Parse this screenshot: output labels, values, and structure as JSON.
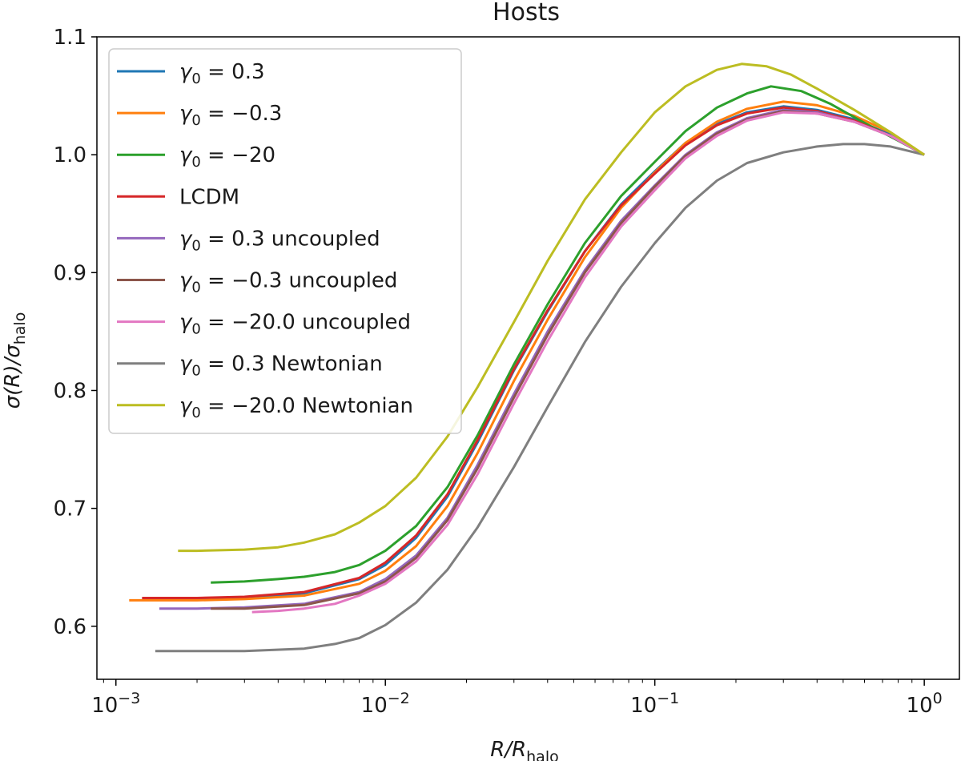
{
  "chart_data": {
    "type": "line",
    "title": "Hosts",
    "xlabel": {
      "base": "R/R",
      "sub": "halo"
    },
    "ylabel": {
      "num": "σ(R)/σ",
      "sub": "halo"
    },
    "xscale": "log",
    "xlim": [
      0.00085,
      1.35
    ],
    "ylim": [
      0.555,
      1.1
    ],
    "x_ticks": [
      {
        "value": 0.001,
        "base": "10",
        "exp": "−3"
      },
      {
        "value": 0.01,
        "base": "10",
        "exp": "−2"
      },
      {
        "value": 0.1,
        "base": "10",
        "exp": "−1"
      },
      {
        "value": 1,
        "base": "10",
        "exp": "0"
      }
    ],
    "y_ticks": [
      {
        "value": 0.6,
        "label": "0.6"
      },
      {
        "value": 0.7,
        "label": "0.7"
      },
      {
        "value": 0.8,
        "label": "0.8"
      },
      {
        "value": 0.9,
        "label": "0.9"
      },
      {
        "value": 1.0,
        "label": "1.0"
      },
      {
        "value": 1.1,
        "label": "1.1"
      }
    ],
    "legend_position": "top-left",
    "series": [
      {
        "name": "γ₀ = 0.3",
        "math": "0.3",
        "suffix": "",
        "color": "#1f77b4",
        "x": [
          0.00125,
          0.002,
          0.003,
          0.005,
          0.008,
          0.01,
          0.013,
          0.017,
          0.022,
          0.03,
          0.04,
          0.055,
          0.075,
          0.1,
          0.13,
          0.17,
          0.22,
          0.3,
          0.4,
          0.55,
          0.75,
          1.0
        ],
        "y": [
          0.623,
          0.623,
          0.624,
          0.628,
          0.64,
          0.652,
          0.675,
          0.71,
          0.756,
          0.817,
          0.867,
          0.918,
          0.958,
          0.986,
          1.01,
          1.026,
          1.036,
          1.041,
          1.038,
          1.03,
          1.017,
          1.0
        ]
      },
      {
        "name": "γ₀ = −0.3",
        "math": "−0.3",
        "suffix": "",
        "color": "#ff7f0e",
        "x": [
          0.00112,
          0.002,
          0.003,
          0.005,
          0.008,
          0.01,
          0.013,
          0.017,
          0.022,
          0.03,
          0.04,
          0.055,
          0.075,
          0.1,
          0.13,
          0.17,
          0.22,
          0.3,
          0.4,
          0.55,
          0.75,
          1.0
        ],
        "y": [
          0.622,
          0.622,
          0.623,
          0.626,
          0.636,
          0.647,
          0.668,
          0.702,
          0.747,
          0.808,
          0.86,
          0.913,
          0.955,
          0.985,
          1.01,
          1.028,
          1.039,
          1.045,
          1.042,
          1.033,
          1.019,
          1.0
        ]
      },
      {
        "name": "γ₀ = −20",
        "math": "−20",
        "suffix": "",
        "color": "#2ca02c",
        "x": [
          0.00225,
          0.003,
          0.004,
          0.005,
          0.0065,
          0.008,
          0.01,
          0.013,
          0.017,
          0.022,
          0.03,
          0.04,
          0.055,
          0.075,
          0.1,
          0.13,
          0.17,
          0.22,
          0.27,
          0.35,
          0.45,
          0.6,
          0.8,
          1.0
        ],
        "y": [
          0.637,
          0.638,
          0.64,
          0.642,
          0.646,
          0.652,
          0.664,
          0.685,
          0.718,
          0.762,
          0.822,
          0.873,
          0.925,
          0.965,
          0.994,
          1.02,
          1.04,
          1.052,
          1.058,
          1.054,
          1.043,
          1.027,
          1.012,
          1.0
        ]
      },
      {
        "name": "LCDM",
        "math": "",
        "suffix": "LCDM",
        "color": "#d62728",
        "x": [
          0.00125,
          0.002,
          0.003,
          0.005,
          0.008,
          0.01,
          0.013,
          0.017,
          0.022,
          0.03,
          0.04,
          0.055,
          0.075,
          0.1,
          0.13,
          0.17,
          0.22,
          0.3,
          0.4,
          0.55,
          0.75,
          1.0
        ],
        "y": [
          0.624,
          0.624,
          0.625,
          0.629,
          0.641,
          0.654,
          0.677,
          0.712,
          0.758,
          0.818,
          0.868,
          0.918,
          0.957,
          0.984,
          1.008,
          1.025,
          1.035,
          1.04,
          1.037,
          1.029,
          1.016,
          1.0
        ]
      },
      {
        "name": "γ₀ = 0.3 uncoupled",
        "math": "0.3",
        "suffix": " uncoupled",
        "color": "#9467bd",
        "x": [
          0.00145,
          0.002,
          0.003,
          0.005,
          0.008,
          0.01,
          0.013,
          0.017,
          0.022,
          0.03,
          0.04,
          0.055,
          0.075,
          0.1,
          0.13,
          0.17,
          0.22,
          0.3,
          0.4,
          0.55,
          0.75,
          1.0
        ],
        "y": [
          0.615,
          0.615,
          0.616,
          0.619,
          0.629,
          0.64,
          0.66,
          0.692,
          0.737,
          0.797,
          0.85,
          0.902,
          0.944,
          0.974,
          1.0,
          1.019,
          1.031,
          1.038,
          1.036,
          1.028,
          1.016,
          1.0
        ]
      },
      {
        "name": "γ₀ = −0.3 uncoupled",
        "math": "−0.3",
        "suffix": " uncoupled",
        "color": "#8c564b",
        "x": [
          0.00225,
          0.003,
          0.005,
          0.008,
          0.01,
          0.013,
          0.017,
          0.022,
          0.03,
          0.04,
          0.055,
          0.075,
          0.1,
          0.13,
          0.17,
          0.22,
          0.3,
          0.4,
          0.55,
          0.75,
          1.0
        ],
        "y": [
          0.615,
          0.615,
          0.618,
          0.628,
          0.638,
          0.658,
          0.69,
          0.734,
          0.794,
          0.847,
          0.9,
          0.942,
          0.973,
          0.999,
          1.018,
          1.03,
          1.037,
          1.035,
          1.028,
          1.016,
          1.0
        ]
      },
      {
        "name": "γ₀ = −20.0 uncoupled",
        "math": "−20.0",
        "suffix": " uncoupled",
        "color": "#e377c2",
        "x": [
          0.0032,
          0.004,
          0.005,
          0.0065,
          0.008,
          0.01,
          0.013,
          0.017,
          0.022,
          0.03,
          0.04,
          0.055,
          0.075,
          0.1,
          0.13,
          0.17,
          0.22,
          0.3,
          0.4,
          0.55,
          0.75,
          1.0
        ],
        "y": [
          0.612,
          0.613,
          0.615,
          0.619,
          0.626,
          0.636,
          0.655,
          0.686,
          0.729,
          0.789,
          0.842,
          0.896,
          0.939,
          0.97,
          0.997,
          1.016,
          1.029,
          1.036,
          1.035,
          1.028,
          1.016,
          1.0
        ]
      },
      {
        "name": "γ₀ = 0.3 Newtonian",
        "math": "0.3",
        "suffix": " Newtonian",
        "color": "#7f7f7f",
        "x": [
          0.0014,
          0.002,
          0.003,
          0.005,
          0.0065,
          0.008,
          0.01,
          0.013,
          0.017,
          0.022,
          0.03,
          0.04,
          0.055,
          0.075,
          0.1,
          0.13,
          0.17,
          0.22,
          0.3,
          0.4,
          0.5,
          0.6,
          0.75,
          1.0
        ],
        "y": [
          0.579,
          0.579,
          0.579,
          0.581,
          0.585,
          0.59,
          0.601,
          0.62,
          0.648,
          0.684,
          0.735,
          0.786,
          0.841,
          0.888,
          0.925,
          0.955,
          0.978,
          0.993,
          1.002,
          1.007,
          1.009,
          1.009,
          1.007,
          1.0
        ]
      },
      {
        "name": "γ₀ = −20.0 Newtonian",
        "math": "−20.0",
        "suffix": " Newtonian",
        "color": "#bcbd22",
        "x": [
          0.0017,
          0.002,
          0.003,
          0.004,
          0.005,
          0.0065,
          0.008,
          0.01,
          0.013,
          0.017,
          0.022,
          0.03,
          0.04,
          0.055,
          0.075,
          0.1,
          0.13,
          0.17,
          0.21,
          0.26,
          0.32,
          0.4,
          0.55,
          0.75,
          1.0
        ],
        "y": [
          0.664,
          0.664,
          0.665,
          0.667,
          0.671,
          0.678,
          0.688,
          0.702,
          0.726,
          0.761,
          0.803,
          0.858,
          0.91,
          0.962,
          1.002,
          1.036,
          1.058,
          1.072,
          1.077,
          1.075,
          1.068,
          1.056,
          1.038,
          1.019,
          1.0
        ]
      }
    ]
  }
}
